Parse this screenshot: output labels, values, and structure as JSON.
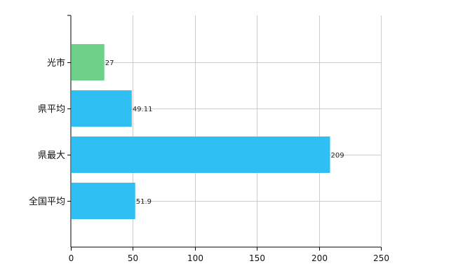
{
  "chart_data": {
    "type": "bar",
    "orientation": "horizontal",
    "categories": [
      "光市",
      "県平均",
      "県最大",
      "全国平均"
    ],
    "values": [
      27,
      49.11,
      209,
      51.9
    ],
    "value_labels": [
      "27",
      "49.11",
      "209",
      "51.9"
    ],
    "bar_colors": [
      "#6dd18a",
      "#30bff2",
      "#30bff2",
      "#30bff2"
    ],
    "xlim": [
      0,
      250
    ],
    "x_ticks": [
      0,
      50,
      100,
      150,
      200,
      250
    ],
    "x_tick_labels": [
      "0",
      "50",
      "100",
      "150",
      "200",
      "250"
    ],
    "grid": true,
    "grid_color": "#cccccc"
  }
}
